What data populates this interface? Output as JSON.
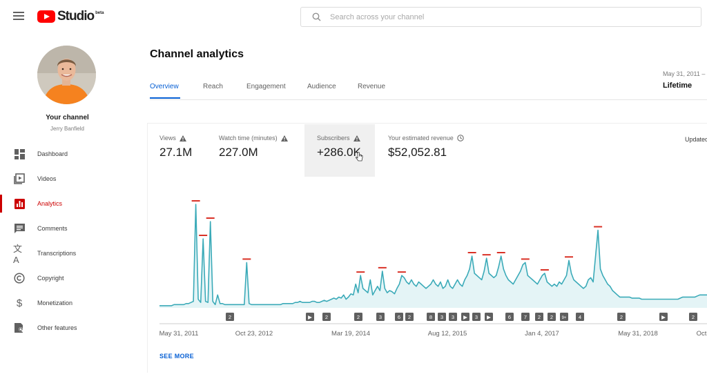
{
  "header": {
    "logo_text": "Studio",
    "logo_badge": "beta",
    "search_placeholder": "Search across your channel"
  },
  "sidebar": {
    "channel_title": "Your channel",
    "channel_owner": "Jerry Banfield",
    "items": [
      {
        "label": "Dashboard",
        "icon": "dashboard-icon"
      },
      {
        "label": "Videos",
        "icon": "videos-icon"
      },
      {
        "label": "Analytics",
        "icon": "analytics-icon",
        "active": true
      },
      {
        "label": "Comments",
        "icon": "comments-icon"
      },
      {
        "label": "Transcriptions",
        "icon": "translate-icon"
      },
      {
        "label": "Copyright",
        "icon": "copyright-icon"
      },
      {
        "label": "Monetization",
        "icon": "dollar-icon"
      },
      {
        "label": "Other features",
        "icon": "other-features-icon"
      }
    ]
  },
  "main": {
    "title": "Channel analytics",
    "tabs": [
      "Overview",
      "Reach",
      "Engagement",
      "Audience",
      "Revenue"
    ],
    "active_tab": "Overview",
    "date_range": "May 31, 2011 –",
    "date_label": "Lifetime",
    "updated_label": "Updated",
    "metrics": [
      {
        "label": "Views",
        "value": "27.1M",
        "warning": true
      },
      {
        "label": "Watch time (minutes)",
        "value": "227.0M",
        "warning": true
      },
      {
        "label": "Subscribers",
        "value": "+286.0K",
        "warning": true,
        "selected": true
      },
      {
        "label": "Your estimated revenue",
        "value": "$52,052.81",
        "info": true
      }
    ],
    "see_more": "SEE MORE"
  },
  "colors": {
    "accent": "#065fd4",
    "brand_red": "#ff0000",
    "active_red": "#cc0000",
    "line": "#3aaab8",
    "peak_marker": "#d93025"
  },
  "chart_data": {
    "type": "area",
    "metric": "Subscribers",
    "x_tick_labels": [
      "May 31, 2011",
      "Oct 23, 2012",
      "Mar 19, 2014",
      "Aug 12, 2015",
      "Jan 4, 2017",
      "May 31, 2018",
      "Oct"
    ],
    "x_range": [
      "2011-05-31",
      "2019-10-01"
    ],
    "grid": false,
    "legend": "none",
    "series": [
      {
        "values": [
          2,
          2,
          2,
          2,
          2,
          2,
          3,
          3,
          3,
          3,
          3,
          4,
          4,
          5,
          6,
          96,
          8,
          5,
          64,
          6,
          5,
          80,
          6,
          3,
          12,
          4,
          4,
          3,
          3,
          3,
          3,
          3,
          3,
          3,
          3,
          3,
          42,
          4,
          3,
          3,
          3,
          3,
          3,
          3,
          3,
          3,
          3,
          3,
          3,
          3,
          3,
          4,
          4,
          4,
          4,
          4,
          5,
          5,
          6,
          5,
          5,
          5,
          5,
          6,
          6,
          5,
          5,
          6,
          7,
          6,
          7,
          8,
          9,
          8,
          10,
          9,
          12,
          8,
          10,
          13,
          12,
          22,
          14,
          30,
          18,
          16,
          14,
          26,
          12,
          16,
          20,
          16,
          34,
          18,
          14,
          16,
          15,
          13,
          18,
          22,
          30,
          28,
          24,
          22,
          26,
          22,
          20,
          24,
          22,
          20,
          18,
          20,
          22,
          26,
          22,
          20,
          24,
          18,
          20,
          26,
          20,
          18,
          22,
          26,
          22,
          20,
          26,
          30,
          36,
          48,
          32,
          30,
          28,
          26,
          34,
          46,
          32,
          30,
          28,
          30,
          38,
          48,
          36,
          30,
          26,
          24,
          22,
          26,
          30,
          34,
          40,
          42,
          30,
          28,
          26,
          24,
          22,
          26,
          30,
          32,
          24,
          22,
          20,
          22,
          20,
          24,
          22,
          26,
          30,
          44,
          32,
          26,
          24,
          22,
          20,
          18,
          20,
          26,
          28,
          24,
          48,
          72,
          36,
          30,
          26,
          22,
          20,
          16,
          14,
          12,
          10,
          10,
          10,
          10,
          10,
          9,
          9,
          9,
          9,
          8,
          8,
          8,
          8,
          8,
          8,
          8,
          8,
          8,
          8,
          8,
          8,
          8,
          8,
          8,
          8,
          9,
          10,
          10,
          10,
          10,
          10,
          10,
          11,
          12,
          12,
          12,
          12
        ]
      }
    ],
    "annotation_markers": [
      "2",
      "▶",
      "2",
      "2",
      "3",
      "6",
      "2",
      "8",
      "3",
      "3",
      "▶",
      "3",
      "▶",
      "6",
      "7",
      "2",
      "2",
      "9+",
      "4",
      "2",
      "▶",
      "2"
    ]
  }
}
